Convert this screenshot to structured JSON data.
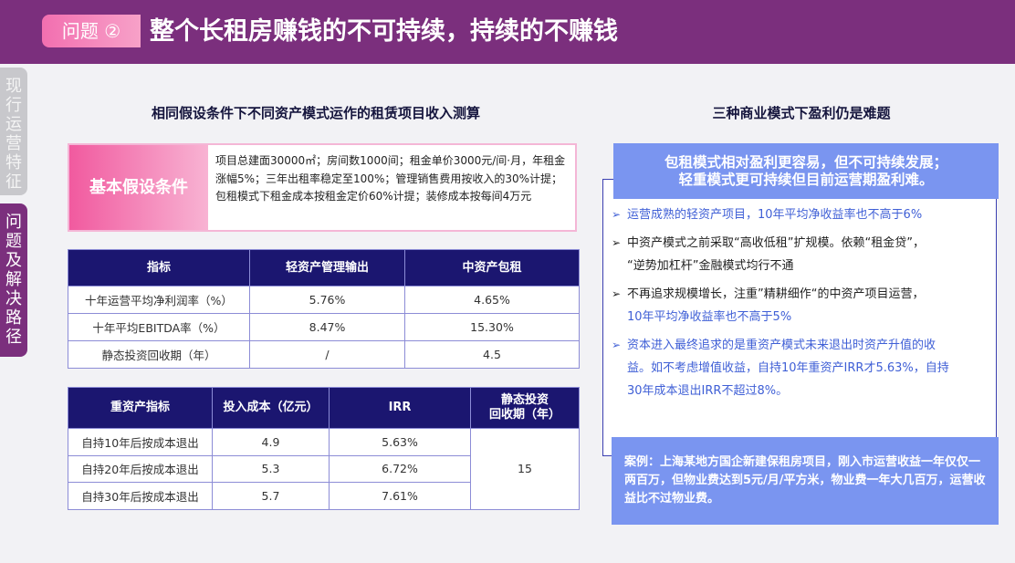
{
  "header": {
    "tag": "问题 ②",
    "title": "整个长租房赚钱的不可持续，持续的不赚钱"
  },
  "side_tabs": [
    {
      "label": "现行运营特征",
      "chars": [
        "现",
        "行",
        "运",
        "营",
        "特",
        "征"
      ]
    },
    {
      "label": "问题及解决路径",
      "chars": [
        "问",
        "题",
        "及",
        "解",
        "决",
        "路",
        "径"
      ]
    }
  ],
  "left": {
    "section_title": "相同假设条件下不同资产模式运作的租赁项目收入测算",
    "assumption_label": "基本假设条件",
    "assumption_text": "项目总建面30000㎡；房间数1000间；租金单价3000元/间·月，年租金涨幅5%；三年出租率稳定至100%；管理销售费用按收入的30%计提；包租模式下租金成本按租金定价60%计提；装修成本按每间4万元",
    "table1": {
      "headers": [
        "指标",
        "轻资产管理输出",
        "中资产包租"
      ],
      "rows": [
        [
          "十年运营平均净利润率（%）",
          "5.76%",
          "4.65%"
        ],
        [
          "十年平均EBITDA率（%）",
          "8.47%",
          "15.30%"
        ],
        [
          "静态投资回收期（年）",
          "/",
          "4.5"
        ]
      ]
    },
    "table2": {
      "headers": [
        "重资产指标",
        "投入成本（亿元）",
        "IRR",
        "静态投资",
        "回收期（年）"
      ],
      "rows": [
        [
          "自持10年后按成本退出",
          "4.9",
          "5.63%"
        ],
        [
          "自持20年后按成本退出",
          "5.3",
          "6.72%"
        ],
        [
          "自持30年后按成本退出",
          "5.7",
          "7.61%"
        ]
      ],
      "payback": "15"
    }
  },
  "right": {
    "section_title": "三种商业模式下盈利仍是难题",
    "banner_line1": "包租模式相对盈利更容易，但不可持续发展；",
    "banner_line2": "轻重模式更可持续但目前运营期盈利难。",
    "bullets": [
      {
        "marker": "➢",
        "lines": [
          "运营成熟的轻资产项目，10年平均净收益率也不高于6%"
        ]
      },
      {
        "marker": "➢",
        "lines": [
          "中资产模式之前采取“高收低租”扩规模。依赖“租金贷”，",
          "“逆势加杠杆”金融模式均行不通"
        ]
      },
      {
        "marker": "➢",
        "lines": [
          "不再追求规模增长，注重”精耕细作“的中资产项目运营，",
          "10年平均净收益率也不高于5%"
        ]
      },
      {
        "marker": "➢",
        "lines": [
          "资本进入最终追求的是重资产模式未来退出时资产升值的收",
          "益。如不考虑增值收益，自持10年重资产IRR才5.63%，自持",
          "30年成本退出IRR不超过8%。"
        ]
      }
    ],
    "case_text": "案例：上海某地方国企新建保租房项目，刚入市运营收益一年仅仅一两百万，但物业费达到5元/月/平方米，物业费一年大几百万，运营收益比不过物业费。"
  }
}
